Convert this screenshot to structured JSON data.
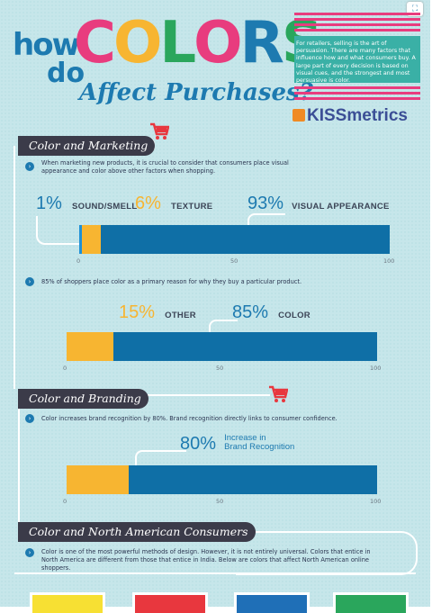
{
  "header": {
    "how": "how",
    "do": "do",
    "colors_letters": [
      {
        "ch": "C",
        "color": "#e83c7e"
      },
      {
        "ch": "O",
        "color": "#f7b531"
      },
      {
        "ch": "L",
        "color": "#2aa65c"
      },
      {
        "ch": "O",
        "color": "#e83c7e"
      },
      {
        "ch": "R",
        "color": "#1d7ab0"
      },
      {
        "ch": "S",
        "color": "#2aa65c"
      }
    ],
    "subtitle": "Affect Purchases?",
    "intro": "For retailers, selling is the art of persuasion. There are many factors that influence how and what consumers buy. A large part of every decision is based on visual cues, and the strongest and most persuasive is color.",
    "brand_bold": "KISS",
    "brand_rest": "metrics"
  },
  "sections": {
    "marketing": {
      "title": "Color and Marketing",
      "text": "When marketing new products, it is crucial to consider that consumers place visual appearance and color above other factors when shopping.",
      "stats": [
        {
          "pct": "1%",
          "label": "SOUND/SMELL"
        },
        {
          "pct": "6%",
          "label": "TEXTURE"
        },
        {
          "pct": "93%",
          "label": "VISUAL APPEARANCE"
        }
      ],
      "ticks": [
        "0",
        "50",
        "100"
      ],
      "text2": "85% of shoppers place color as a primary reason for why they buy a particular product.",
      "stats2": [
        {
          "pct": "15%",
          "label": "OTHER"
        },
        {
          "pct": "85%",
          "label": "COLOR"
        }
      ]
    },
    "branding": {
      "title": "Color and Branding",
      "text": "Color increases brand recognition by 80%. Brand recognition directly links to consumer confidence.",
      "stat": {
        "pct": "80%",
        "label_line1": "Increase in",
        "label_line2": "Brand Recognition"
      }
    },
    "north_america": {
      "title": "Color and North American Consumers",
      "text": "Color is one of the most powerful methods of design. However, it is not entirely universal. Colors that entice in North America are different from those that entice in India. Below are colors that affect North American online shoppers."
    }
  },
  "bars": {
    "bar1": {
      "segments": [
        {
          "value": 1,
          "color": "#1e90d6"
        },
        {
          "value": 6,
          "color": "#f7b531"
        },
        {
          "value": 93,
          "color": "#0f6fa6"
        }
      ]
    },
    "bar2": {
      "segments": [
        {
          "value": 15,
          "color": "#f7b531"
        },
        {
          "value": 85,
          "color": "#0f6fa6"
        }
      ]
    },
    "bar3": {
      "segments": [
        {
          "value": 20,
          "color": "#f7b531"
        },
        {
          "value": 80,
          "color": "#0f6fa6"
        }
      ]
    }
  },
  "colors": {
    "accent_blue": "#1d7ab0",
    "accent_yellow": "#f7b531",
    "accent_pink": "#e83c7e",
    "banner_dark": "#3b3b49",
    "cart_red": "#e8373e"
  },
  "swatches": [
    "#f7e033",
    "#e8373e",
    "#1f6fb7",
    "#2aa65c"
  ]
}
